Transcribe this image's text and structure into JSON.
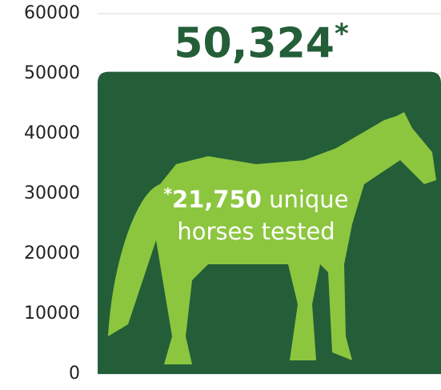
{
  "chart_data": {
    "type": "bar",
    "categories": [
      null
    ],
    "values": [
      50324
    ],
    "value_labels": [
      "50,324"
    ],
    "color": "#235e38",
    "ylim": [
      0,
      60000
    ],
    "yticks": [
      0,
      10000,
      20000,
      30000,
      40000,
      50000,
      60000
    ],
    "grid": true,
    "footnote_marker": "*",
    "footnote_count": "21,750",
    "footnote_text": "unique horses tested"
  }
}
